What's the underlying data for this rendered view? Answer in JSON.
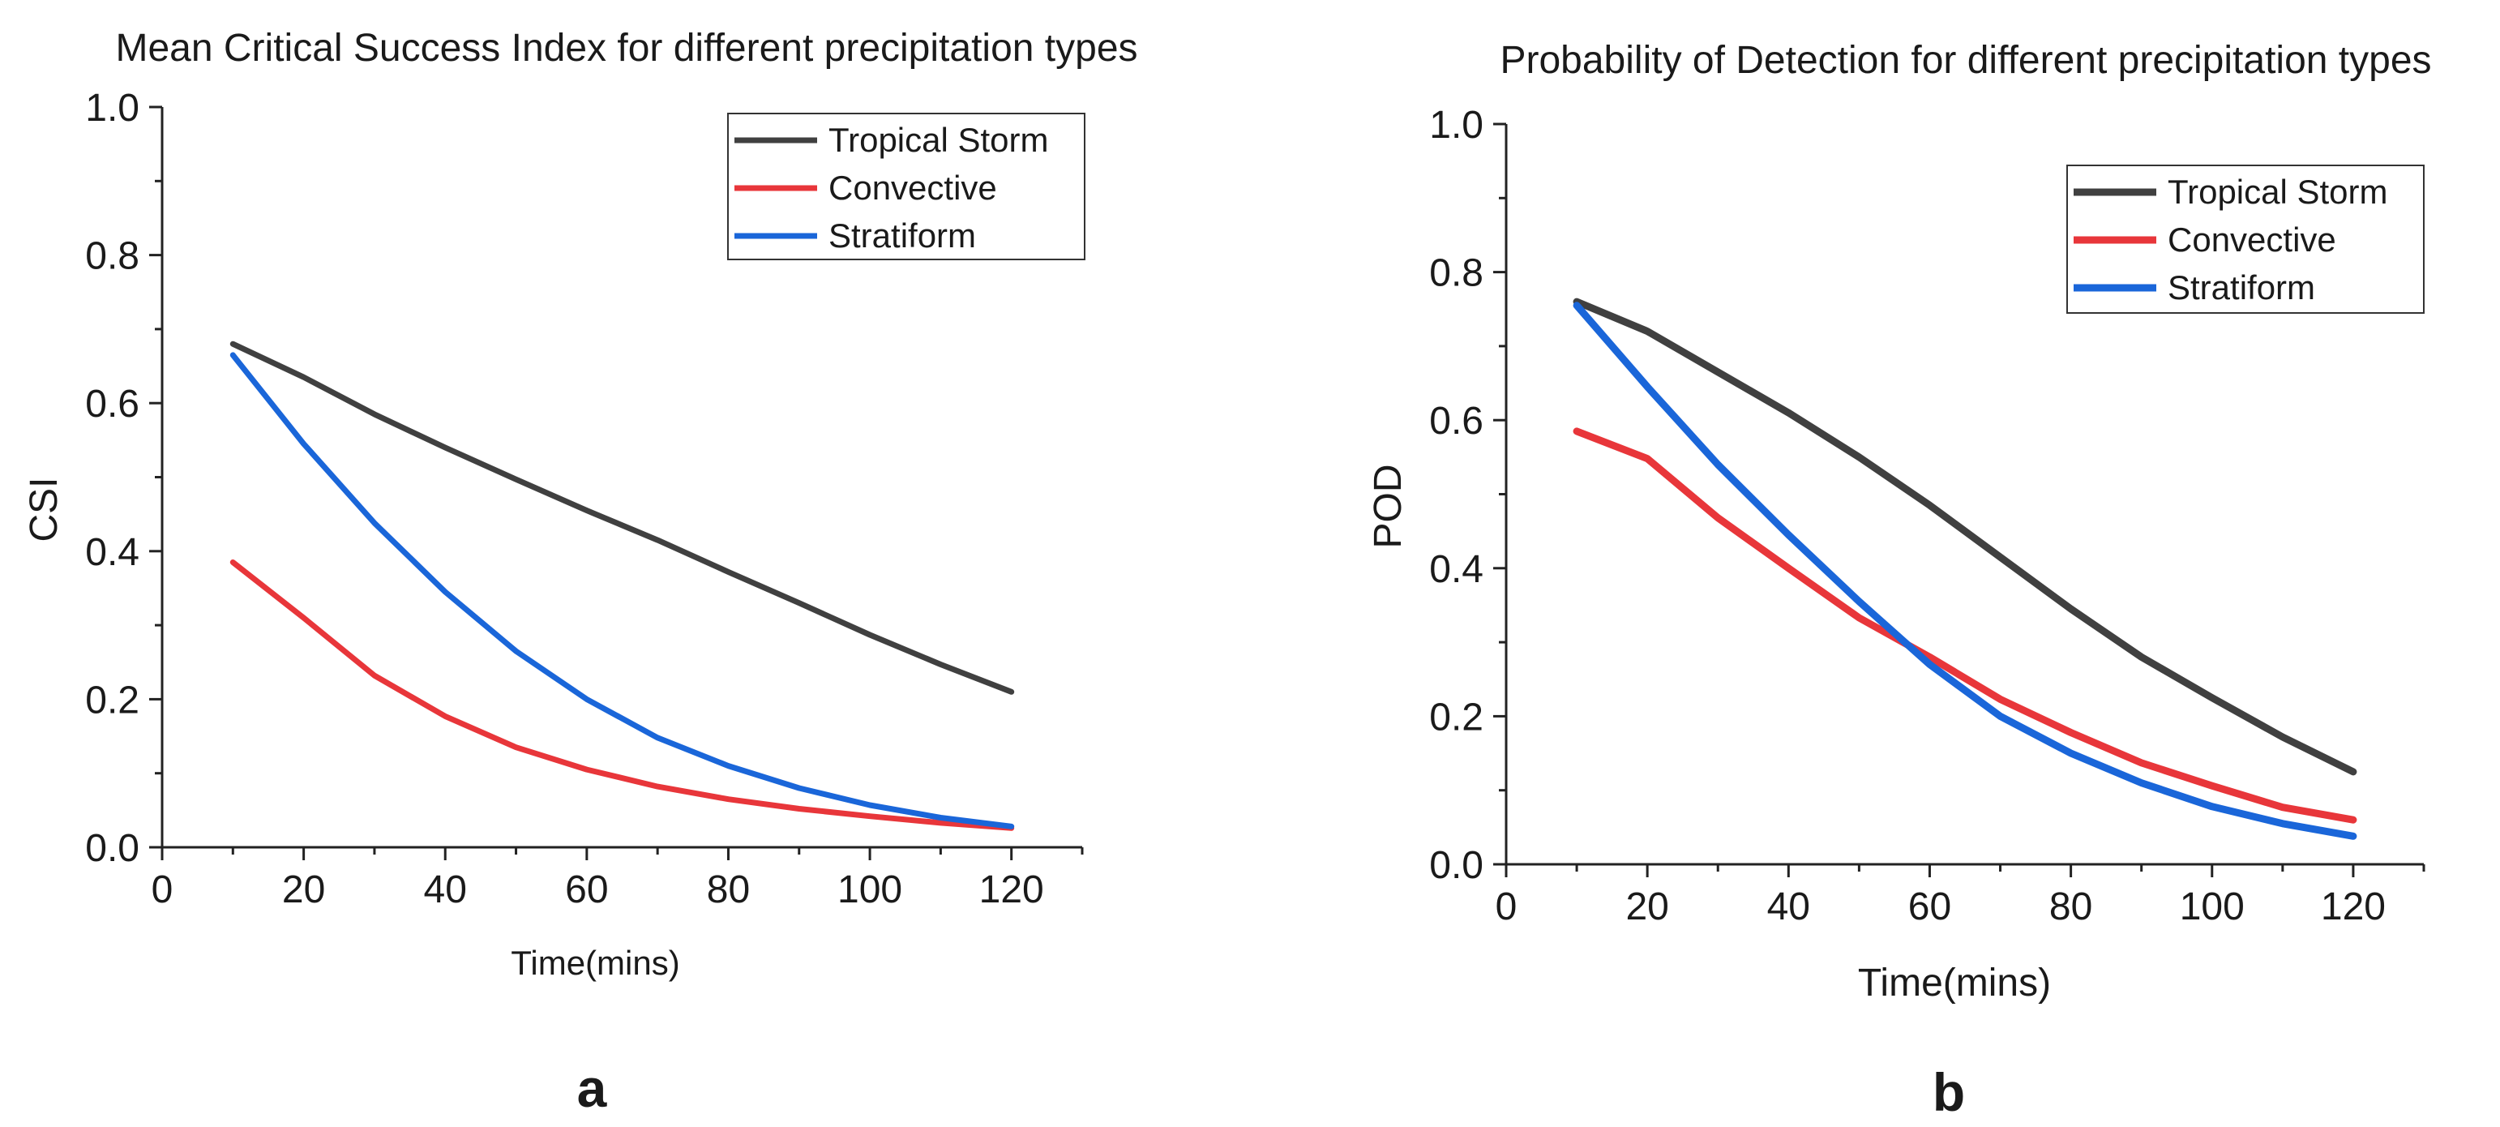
{
  "panel_labels": [
    "a",
    "b"
  ],
  "chart_data": [
    {
      "type": "line",
      "title": "Mean Critical Success Index for different precipitation types",
      "xlabel": "Time(mins)",
      "ylabel": "CSI",
      "xlim": [
        0,
        130
      ],
      "ylim": [
        0,
        1.0
      ],
      "xticks": [
        0,
        20,
        40,
        60,
        80,
        100,
        120
      ],
      "yticks": [
        0.0,
        0.2,
        0.4,
        0.6,
        0.8,
        1.0
      ],
      "xtick_labels": [
        "0",
        "20",
        "40",
        "60",
        "80",
        "100",
        "120"
      ],
      "ytick_labels": [
        "0.0",
        "0.2",
        "0.4",
        "0.6",
        "0.8",
        "1.0"
      ],
      "grid": false,
      "legend_position": "top-right",
      "x": [
        10,
        20,
        30,
        40,
        50,
        60,
        70,
        80,
        90,
        100,
        110,
        120
      ],
      "series": [
        {
          "name": "Tropical Storm",
          "color": "#404040",
          "values": [
            0.68,
            0.635,
            0.585,
            0.54,
            0.497,
            0.455,
            0.415,
            0.372,
            0.33,
            0.287,
            0.247,
            0.21
          ]
        },
        {
          "name": "Convective",
          "color": "#e8363a",
          "values": [
            0.385,
            0.31,
            0.232,
            0.177,
            0.135,
            0.105,
            0.082,
            0.065,
            0.052,
            0.042,
            0.033,
            0.026
          ]
        },
        {
          "name": "Stratiform",
          "color": "#1a66d9",
          "values": [
            0.665,
            0.545,
            0.438,
            0.345,
            0.265,
            0.2,
            0.148,
            0.11,
            0.08,
            0.057,
            0.04,
            0.028
          ]
        }
      ]
    },
    {
      "type": "line",
      "title": "Probability of Detection for different precipitation types",
      "xlabel": "Time(mins)",
      "ylabel": "POD",
      "xlim": [
        0,
        130
      ],
      "ylim": [
        0,
        1.0
      ],
      "xticks": [
        0,
        20,
        40,
        60,
        80,
        100,
        120
      ],
      "yticks": [
        0.0,
        0.2,
        0.4,
        0.6,
        0.8,
        1.0
      ],
      "xtick_labels": [
        "0",
        "20",
        "40",
        "60",
        "80",
        "100",
        "120"
      ],
      "ytick_labels": [
        "0.0",
        "0.2",
        "0.4",
        "0.6",
        "0.8",
        "1.0"
      ],
      "grid": false,
      "legend_position": "top-right",
      "x": [
        10,
        20,
        30,
        40,
        50,
        60,
        70,
        80,
        90,
        100,
        110,
        120
      ],
      "series": [
        {
          "name": "Tropical Storm",
          "color": "#404040",
          "values": [
            0.76,
            0.72,
            0.665,
            0.61,
            0.55,
            0.485,
            0.415,
            0.345,
            0.28,
            0.225,
            0.172,
            0.125
          ]
        },
        {
          "name": "Convective",
          "color": "#e8363a",
          "values": [
            0.585,
            0.548,
            0.468,
            0.4,
            0.333,
            0.28,
            0.223,
            0.178,
            0.137,
            0.106,
            0.077,
            0.06
          ]
        },
        {
          "name": "Stratiform",
          "color": "#1a66d9",
          "values": [
            0.755,
            0.645,
            0.54,
            0.445,
            0.355,
            0.27,
            0.2,
            0.15,
            0.11,
            0.078,
            0.055,
            0.038
          ]
        }
      ]
    }
  ]
}
